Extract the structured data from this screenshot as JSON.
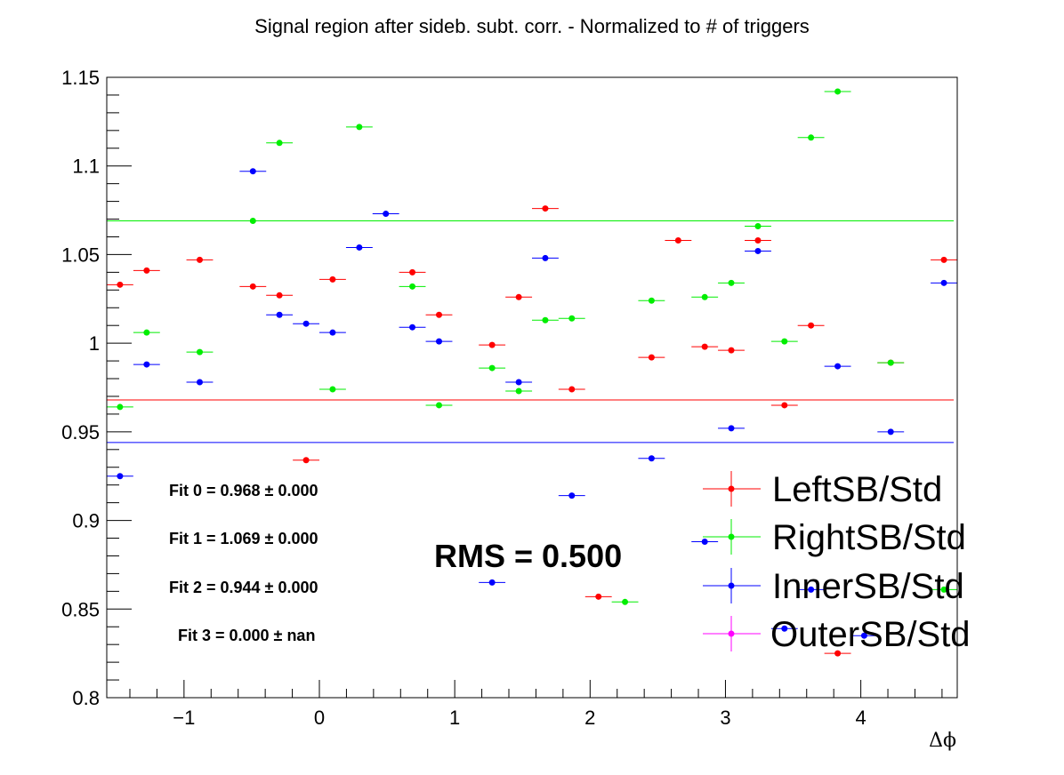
{
  "chart_data": {
    "type": "scatter",
    "title": "Signal region after sideb. subt. corr. - Normalized to # of triggers",
    "xlabel": "Δϕ",
    "ylabel": "",
    "xlim": [
      -1.5708,
      4.7124
    ],
    "ylim": [
      0.8,
      1.15
    ],
    "x_ticks": [
      -1,
      0,
      1,
      2,
      3,
      4
    ],
    "x_tick_labels": [
      "−1",
      "0",
      "1",
      "2",
      "3",
      "4"
    ],
    "y_ticks": [
      0.8,
      0.85,
      0.9,
      0.95,
      1.0,
      1.05,
      1.1,
      1.15
    ],
    "y_tick_labels": [
      "0.8",
      "0.85",
      "0.9",
      "0.95",
      "1",
      "1.05",
      "1.1",
      "1.15"
    ],
    "grid": false,
    "bin_half_width": 0.0982,
    "x": [
      -1.473,
      -1.276,
      -1.08,
      -0.884,
      -0.687,
      -0.491,
      -0.295,
      -0.098,
      0.098,
      0.295,
      0.491,
      0.687,
      0.884,
      1.08,
      1.276,
      1.473,
      1.669,
      1.865,
      2.062,
      2.258,
      2.454,
      2.651,
      2.847,
      3.043,
      3.24,
      3.436,
      3.632,
      3.829,
      4.025,
      4.221,
      4.418,
      4.614
    ],
    "series": [
      {
        "name": "LeftSB/Std",
        "color": "#ff0000",
        "values": [
          1.033,
          1.041,
          null,
          1.047,
          null,
          1.032,
          1.027,
          0.934,
          1.036,
          null,
          null,
          1.04,
          1.016,
          null,
          0.999,
          1.026,
          1.076,
          0.974,
          0.857,
          null,
          0.992,
          1.058,
          0.998,
          0.996,
          1.058,
          0.965,
          1.01,
          0.825,
          null,
          0.989,
          null,
          1.047
        ],
        "fit_value": 0.968
      },
      {
        "name": "RightSB/Std",
        "color": "#00ee00",
        "values": [
          0.964,
          1.006,
          null,
          0.995,
          null,
          1.069,
          1.113,
          null,
          0.974,
          1.122,
          null,
          1.032,
          0.965,
          null,
          0.986,
          0.973,
          1.013,
          1.014,
          null,
          0.854,
          1.024,
          null,
          1.026,
          1.034,
          1.066,
          1.001,
          1.116,
          1.142,
          null,
          0.989,
          null,
          0.861
        ],
        "fit_value": 1.069
      },
      {
        "name": "InnerSB/Std",
        "color": "#0000ff",
        "values": [
          0.925,
          0.988,
          null,
          0.978,
          null,
          1.097,
          1.016,
          1.011,
          1.006,
          1.054,
          1.073,
          1.009,
          1.001,
          null,
          0.865,
          0.978,
          1.048,
          0.914,
          null,
          null,
          0.935,
          null,
          0.888,
          0.952,
          1.052,
          0.839,
          0.861,
          0.987,
          0.835,
          0.95,
          null,
          1.034
        ],
        "fit_value": 0.944
      },
      {
        "name": "OuterSB/Std",
        "color": "#ff00ff",
        "values": [],
        "fit_value": 0.0
      }
    ],
    "fits": [
      {
        "label": "Fit 0 = 0.968 ± 0.000"
      },
      {
        "label": "Fit 1 = 1.069 ± 0.000"
      },
      {
        "label": "Fit 2 = 0.944 ± 0.000"
      },
      {
        "label": "Fit 3 = 0.000 ± nan"
      }
    ],
    "rms_label": "RMS = 0.500",
    "legend_position": "bottom-right"
  }
}
